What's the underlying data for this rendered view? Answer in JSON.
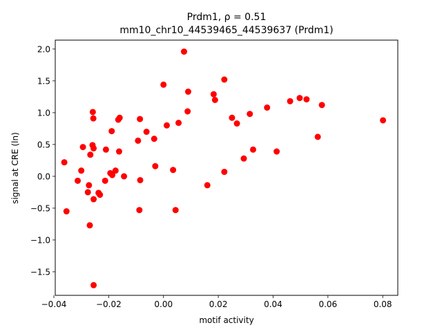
{
  "chart_data": {
    "type": "scatter",
    "title_line1": "Prdm1, ρ = 0.51",
    "title_line2": "mm10_chr10_44539465_44539637 (Prdm1)",
    "xlabel": "motif activity",
    "ylabel": "signal at CRE (ln)",
    "xlim": [
      -0.0395,
      0.0855
    ],
    "ylim": [
      -1.87,
      2.14
    ],
    "xticks": [
      -0.04,
      -0.02,
      0.0,
      0.02,
      0.04,
      0.06,
      0.08
    ],
    "xtick_labels": [
      "−0.04",
      "−0.02",
      "0.00",
      "0.02",
      "0.04",
      "0.06",
      "0.08"
    ],
    "yticks": [
      -1.5,
      -1.0,
      -0.5,
      0.0,
      0.5,
      1.0,
      1.5,
      2.0
    ],
    "ytick_labels": [
      "−1.5",
      "−1.0",
      "−0.5",
      "0.0",
      "0.5",
      "1.0",
      "1.5",
      "2.0"
    ],
    "grid": false,
    "legend": "none",
    "marker_color": "#ff0000",
    "points": [
      {
        "x": -0.0362,
        "y": 0.22
      },
      {
        "x": -0.0354,
        "y": -0.55
      },
      {
        "x": -0.0313,
        "y": -0.07
      },
      {
        "x": -0.03,
        "y": 0.09
      },
      {
        "x": -0.0294,
        "y": 0.46
      },
      {
        "x": -0.0276,
        "y": -0.25
      },
      {
        "x": -0.0272,
        "y": -0.14
      },
      {
        "x": -0.0269,
        "y": -0.77
      },
      {
        "x": -0.0267,
        "y": 0.34
      },
      {
        "x": -0.0259,
        "y": 0.49
      },
      {
        "x": -0.0258,
        "y": 1.01
      },
      {
        "x": -0.0256,
        "y": 0.91
      },
      {
        "x": -0.0255,
        "y": 0.44
      },
      {
        "x": -0.0255,
        "y": -0.36
      },
      {
        "x": -0.0255,
        "y": -1.71
      },
      {
        "x": -0.0237,
        "y": -0.26
      },
      {
        "x": -0.0232,
        "y": -0.29
      },
      {
        "x": -0.0213,
        "y": -0.07
      },
      {
        "x": -0.021,
        "y": 0.42
      },
      {
        "x": -0.0194,
        "y": 0.05
      },
      {
        "x": -0.0189,
        "y": 0.71
      },
      {
        "x": -0.0187,
        "y": 0.02
      },
      {
        "x": -0.0175,
        "y": 0.09
      },
      {
        "x": -0.0165,
        "y": 0.89
      },
      {
        "x": -0.016,
        "y": 0.92
      },
      {
        "x": -0.0162,
        "y": 0.39
      },
      {
        "x": -0.0144,
        "y": 0.0
      },
      {
        "x": -0.0093,
        "y": 0.56
      },
      {
        "x": -0.0086,
        "y": 0.9
      },
      {
        "x": -0.0085,
        "y": -0.06
      },
      {
        "x": -0.0088,
        "y": -0.53
      },
      {
        "x": -0.0062,
        "y": 0.7
      },
      {
        "x": -0.0034,
        "y": 0.59
      },
      {
        "x": -0.003,
        "y": 0.16
      },
      {
        "x": 0.0,
        "y": 1.44
      },
      {
        "x": 0.0012,
        "y": 0.8
      },
      {
        "x": 0.0035,
        "y": 0.1
      },
      {
        "x": 0.0044,
        "y": -0.53
      },
      {
        "x": 0.0055,
        "y": 0.84
      },
      {
        "x": 0.0075,
        "y": 1.96
      },
      {
        "x": 0.0088,
        "y": 1.02
      },
      {
        "x": 0.009,
        "y": 1.33
      },
      {
        "x": 0.016,
        "y": -0.14
      },
      {
        "x": 0.0183,
        "y": 1.29
      },
      {
        "x": 0.0188,
        "y": 1.2
      },
      {
        "x": 0.0222,
        "y": 1.52
      },
      {
        "x": 0.0222,
        "y": 0.07
      },
      {
        "x": 0.025,
        "y": 0.92
      },
      {
        "x": 0.0268,
        "y": 0.83
      },
      {
        "x": 0.0293,
        "y": 0.28
      },
      {
        "x": 0.0315,
        "y": 0.98
      },
      {
        "x": 0.0327,
        "y": 0.42
      },
      {
        "x": 0.0378,
        "y": 1.08
      },
      {
        "x": 0.0413,
        "y": 0.39
      },
      {
        "x": 0.0462,
        "y": 1.18
      },
      {
        "x": 0.0497,
        "y": 1.23
      },
      {
        "x": 0.0522,
        "y": 1.21
      },
      {
        "x": 0.0563,
        "y": 0.62
      },
      {
        "x": 0.0578,
        "y": 1.12
      },
      {
        "x": 0.0801,
        "y": 0.88
      }
    ]
  }
}
